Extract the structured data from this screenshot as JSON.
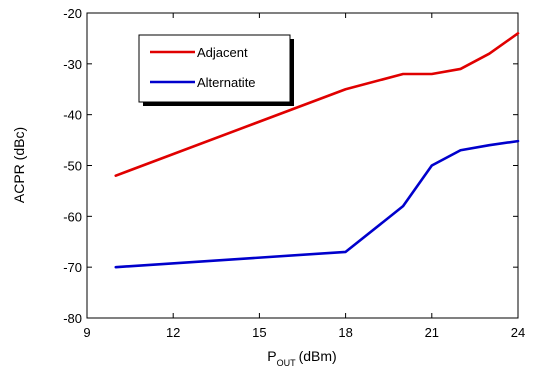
{
  "chart_data": {
    "type": "line",
    "title": "",
    "xlabel": "P",
    "xlabel_sub": "OUT",
    "xlabel_unit": "(dBm)",
    "ylabel": "ACPR (dBc)",
    "xlim": [
      9,
      24
    ],
    "ylim": [
      -80,
      -20
    ],
    "xticks": [
      9,
      12,
      15,
      18,
      21,
      24
    ],
    "yticks": [
      -80,
      -70,
      -60,
      -50,
      -40,
      -30,
      -20
    ],
    "grid": false,
    "legend_placement": "top-left",
    "series": [
      {
        "name": "Adjacent",
        "color": "#e00000",
        "x": [
          10,
          18,
          20,
          21,
          22,
          23,
          24
        ],
        "y": [
          -52,
          -35,
          -32,
          -32,
          -31,
          -28,
          -24
        ]
      },
      {
        "name": "Alternatite",
        "color": "#0000cc",
        "x": [
          10,
          18,
          20,
          21,
          22,
          23,
          24
        ],
        "y": [
          -70,
          -67,
          -58,
          -50,
          -47,
          -46,
          -45.2
        ]
      }
    ]
  }
}
